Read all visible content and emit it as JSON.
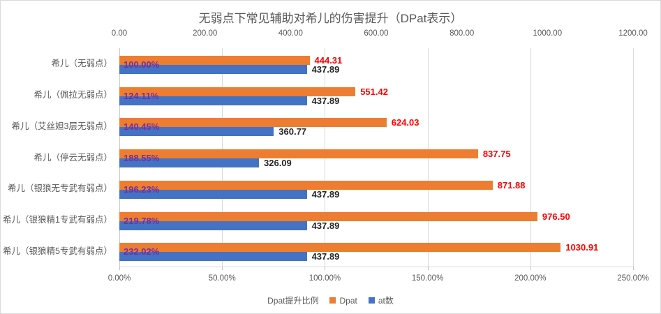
{
  "chart_data": {
    "type": "bar",
    "orientation": "horizontal",
    "title": "无弱点下常见辅助对希儿的伤害提升（DPat表示）",
    "categories": [
      "希儿（无弱点）",
      "希儿（佩拉无弱点）",
      "希儿（艾丝妲3层无弱点）",
      "希儿（停云无弱点）",
      "希儿（银狼无专武有弱点）",
      "希儿（银狼精1专武有弱点）",
      "希儿（银狼精5专武有弱点）"
    ],
    "series": [
      {
        "name": "Dpat提升比例",
        "render": "labels-only",
        "axis": "percent-bottom",
        "values": [
          100.0,
          124.11,
          140.45,
          188.55,
          196.23,
          219.78,
          232.02
        ],
        "data_labels": [
          "100.00%",
          "124.11%",
          "140.45%",
          "188.55%",
          "196.23%",
          "219.78%",
          "232.02%"
        ],
        "label_color": "#7030A0"
      },
      {
        "name": "Dpat",
        "render": "bar",
        "axis": "value-top",
        "color": "#ED7D31",
        "values": [
          444.31,
          551.42,
          624.03,
          837.75,
          871.88,
          976.5,
          1030.91
        ],
        "data_labels": [
          "444.31",
          "551.42",
          "624.03",
          "837.75",
          "871.88",
          "976.50",
          "1030.91"
        ],
        "label_color": "#FF0000"
      },
      {
        "name": "at数",
        "render": "bar",
        "axis": "value-top",
        "color": "#4472C4",
        "values": [
          437.89,
          437.89,
          360.77,
          326.09,
          437.89,
          437.89,
          437.89
        ],
        "data_labels": [
          "437.89",
          "437.89",
          "360.77",
          "326.09",
          "437.89",
          "437.89",
          "437.89"
        ],
        "label_color": "#262626"
      }
    ],
    "axes": {
      "top": {
        "min": 0,
        "max": 1200,
        "tick_values": [
          0,
          200,
          400,
          600,
          800,
          1000,
          1200
        ],
        "tick_labels": [
          "0.00",
          "200.00",
          "400.00",
          "600.00",
          "800.00",
          "1000.00",
          "1200.00"
        ]
      },
      "bottom": {
        "min": 0,
        "max": 250,
        "unit": "%",
        "tick_values": [
          0,
          50,
          100,
          150,
          200,
          250
        ],
        "tick_labels": [
          "0.00%",
          "50.00%",
          "100.00%",
          "150.00%",
          "200.00%",
          "250.00%"
        ]
      }
    },
    "grid": {
      "vertical_gridlines_at_percent": [
        50,
        100,
        150,
        200,
        250
      ],
      "color": "#D9D9D9"
    },
    "legend": {
      "position": "bottom",
      "items": [
        {
          "label": "Dpat提升比例",
          "swatch": null
        },
        {
          "label": "Dpat",
          "swatch": "#ED7D31"
        },
        {
          "label": "at数",
          "swatch": "#4472C4"
        }
      ]
    }
  }
}
